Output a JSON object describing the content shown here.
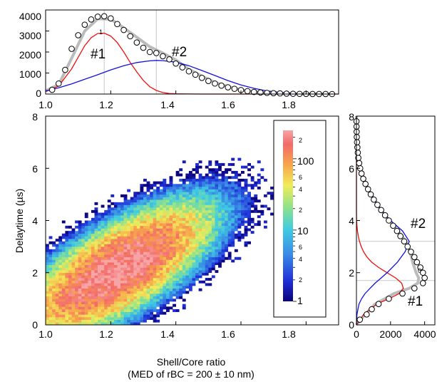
{
  "labels": {
    "xlabel": "Shell/Core ratio",
    "xlabel_sub": "(MED of rBC = 200 ± 10 nm)",
    "ylabel": "Delaytime (µs)"
  },
  "chart_data": [
    {
      "id": "top-histogram",
      "type": "line",
      "title": "",
      "xlim": [
        1.0,
        1.9
      ],
      "ylim": [
        0,
        4000
      ],
      "x_ticks": [
        "1.0",
        "1.2",
        "1.4",
        "1.6",
        "1.8"
      ],
      "y_ticks": [
        "0",
        "1000",
        "2000",
        "3000",
        "4000"
      ],
      "annotations": [
        "#1",
        "#2",
        "1"
      ],
      "vlines": [
        1.18,
        1.34
      ],
      "series": [
        {
          "role": "markers",
          "x": [
            1.02,
            1.04,
            1.06,
            1.08,
            1.1,
            1.12,
            1.14,
            1.16,
            1.18,
            1.2,
            1.22,
            1.24,
            1.26,
            1.28,
            1.3,
            1.32,
            1.34,
            1.36,
            1.38,
            1.4,
            1.42,
            1.44,
            1.46,
            1.48,
            1.5,
            1.52,
            1.54,
            1.56,
            1.58,
            1.6,
            1.62,
            1.64,
            1.66,
            1.68,
            1.7,
            1.72,
            1.74,
            1.76,
            1.78,
            1.8,
            1.82,
            1.84,
            1.86,
            1.88
          ],
          "y": [
            200,
            500,
            1150,
            2150,
            2800,
            3300,
            3550,
            3680,
            3700,
            3600,
            3330,
            3050,
            2750,
            2450,
            2200,
            2000,
            1950,
            1800,
            1650,
            1450,
            1270,
            1080,
            920,
            770,
            620,
            500,
            400,
            320,
            250,
            190,
            140,
            100,
            75,
            55,
            40,
            30,
            20,
            12,
            8,
            5,
            3,
            2,
            1,
            0
          ]
        },
        {
          "role": "fit-sum",
          "color": "#bbbbbb",
          "x": [
            1.0,
            1.04,
            1.08,
            1.12,
            1.16,
            1.2,
            1.24,
            1.28,
            1.32,
            1.36,
            1.4,
            1.44,
            1.48,
            1.52,
            1.56,
            1.6,
            1.64,
            1.68,
            1.72,
            1.76,
            1.8,
            1.84,
            1.88
          ],
          "y": [
            150,
            450,
            1700,
            3000,
            3580,
            3560,
            3150,
            2700,
            2250,
            1950,
            1620,
            1180,
            850,
            560,
            350,
            200,
            110,
            55,
            25,
            10,
            4,
            1,
            0
          ]
        },
        {
          "role": "component-1",
          "color": "#ee1111",
          "x": [
            1.0,
            1.04,
            1.08,
            1.12,
            1.14,
            1.16,
            1.18,
            1.2,
            1.22,
            1.24,
            1.26,
            1.28,
            1.3,
            1.32,
            1.34,
            1.36,
            1.38,
            1.4,
            1.44,
            1.48,
            1.9
          ],
          "y": [
            120,
            380,
            1200,
            2300,
            2680,
            2880,
            2900,
            2760,
            2450,
            2000,
            1500,
            1050,
            650,
            350,
            170,
            70,
            25,
            10,
            2,
            0,
            0
          ]
        },
        {
          "role": "component-2",
          "color": "#1111dd",
          "x": [
            1.0,
            1.04,
            1.08,
            1.12,
            1.16,
            1.2,
            1.24,
            1.28,
            1.32,
            1.34,
            1.36,
            1.4,
            1.44,
            1.48,
            1.52,
            1.56,
            1.6,
            1.64,
            1.68,
            1.72,
            1.76,
            1.8,
            1.84,
            1.88
          ],
          "y": [
            150,
            300,
            480,
            700,
            920,
            1150,
            1350,
            1500,
            1580,
            1600,
            1590,
            1520,
            1350,
            1120,
            880,
            640,
            430,
            270,
            150,
            80,
            35,
            15,
            5,
            0
          ]
        }
      ]
    },
    {
      "id": "heatmap",
      "type": "heatmap",
      "xlim": [
        1.0,
        1.9
      ],
      "ylim": [
        0,
        8
      ],
      "x_ticks": [
        "1.0",
        "1.2",
        "1.4",
        "1.6",
        "1.8"
      ],
      "y_ticks": [
        "0",
        "2",
        "4",
        "6",
        "8"
      ],
      "colorbar": {
        "scale": "log",
        "range": [
          1,
          250
        ],
        "major_ticks": [
          "1",
          "10",
          "100"
        ],
        "minor_ticks": [
          "2",
          "4",
          "6",
          "2",
          "4",
          "6",
          "2"
        ]
      },
      "peak": {
        "x": 1.2,
        "y": 1.9
      }
    },
    {
      "id": "right-histogram",
      "type": "line",
      "xlim": [
        0,
        4600
      ],
      "ylim": [
        0,
        8
      ],
      "x_ticks": [
        "0",
        "2000",
        "4000"
      ],
      "y_ticks": [
        "0",
        "2",
        "4",
        "6",
        "8"
      ],
      "annotations": [
        "#1",
        "#2",
        "0"
      ],
      "hlines": [
        1.7,
        3.2
      ],
      "series": [
        {
          "role": "markers",
          "y": [
            0.2,
            0.4,
            0.6,
            0.8,
            1.0,
            1.2,
            1.4,
            1.6,
            1.8,
            2.0,
            2.2,
            2.4,
            2.6,
            2.8,
            3.0,
            3.2,
            3.4,
            3.6,
            3.8,
            4.0,
            4.2,
            4.4,
            4.6,
            4.8,
            5.0,
            5.2,
            5.4,
            5.6,
            5.8,
            6.0,
            6.2,
            6.4,
            6.6,
            6.8,
            7.0,
            7.2,
            7.4,
            7.6,
            7.8
          ],
          "x": [
            200,
            600,
            900,
            1300,
            1900,
            2700,
            3400,
            3900,
            4000,
            3900,
            3750,
            3550,
            3400,
            3200,
            3000,
            2800,
            2580,
            2380,
            2150,
            1900,
            1680,
            1450,
            1230,
            1020,
            840,
            680,
            530,
            400,
            300,
            220,
            160,
            110,
            80,
            55,
            35,
            20,
            12,
            6,
            3
          ]
        },
        {
          "role": "fit-sum",
          "color": "#bbbbbb",
          "y": [
            0,
            0.4,
            0.8,
            1.2,
            1.4,
            1.6,
            1.8,
            2.0,
            2.4,
            2.8,
            3.2,
            3.6,
            4.0,
            4.4,
            4.8,
            5.2,
            5.6,
            6.0,
            6.4,
            6.8,
            7.2,
            7.6,
            8.0
          ],
          "x": [
            0,
            500,
            1100,
            2200,
            3100,
            3600,
            3650,
            3500,
            3300,
            3150,
            2900,
            2450,
            1900,
            1450,
            1050,
            700,
            420,
            230,
            110,
            50,
            20,
            8,
            2
          ]
        },
        {
          "role": "component-1",
          "color": "#ee1111",
          "y": [
            0,
            0.4,
            0.8,
            1.0,
            1.2,
            1.4,
            1.6,
            1.8,
            2.0,
            2.2,
            2.4,
            2.6,
            2.8,
            3.0,
            3.2,
            3.4,
            3.6,
            3.8,
            4.0,
            4.4,
            8.0
          ],
          "x": [
            0,
            420,
            1200,
            1900,
            2500,
            2750,
            2650,
            2300,
            1800,
            1300,
            900,
            620,
            420,
            280,
            180,
            110,
            60,
            30,
            10,
            0,
            0
          ]
        },
        {
          "role": "component-2",
          "color": "#1111dd",
          "y": [
            0,
            0.4,
            0.8,
            1.0,
            1.2,
            1.4,
            1.6,
            1.8,
            2.0,
            2.4,
            2.8,
            3.2,
            3.6,
            4.0,
            4.4,
            4.8,
            5.2,
            5.6,
            6.0,
            6.4,
            6.8,
            7.2,
            7.6,
            8.0
          ],
          "x": [
            0,
            30,
            150,
            300,
            500,
            800,
            1100,
            1450,
            1800,
            2400,
            2850,
            3100,
            2700,
            2000,
            1450,
            1050,
            700,
            430,
            240,
            120,
            55,
            20,
            8,
            2
          ]
        }
      ]
    }
  ]
}
